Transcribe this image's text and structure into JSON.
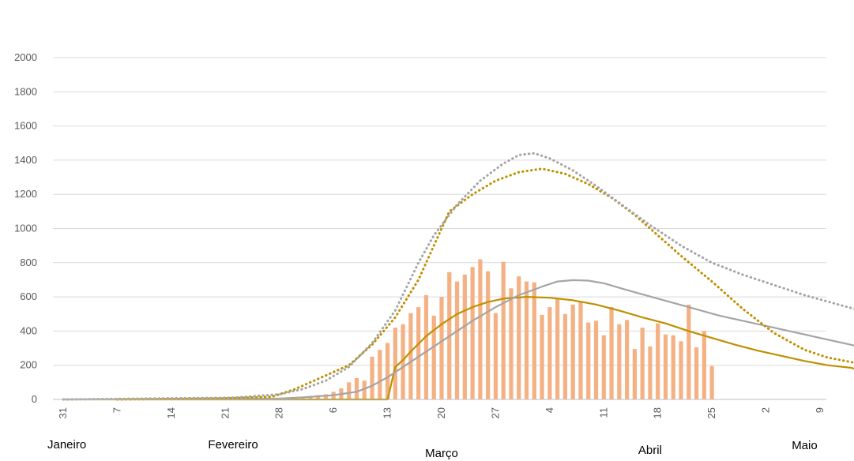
{
  "chart_data": {
    "type": "bar",
    "title": "",
    "xlabel": "",
    "ylabel": "",
    "ylim": [
      0,
      2000
    ],
    "y_ticks": [
      "0",
      "200",
      "400",
      "600",
      "800",
      "1000",
      "1200",
      "1400",
      "1600",
      "1800",
      "2000"
    ],
    "y_tick_values": [
      0,
      200,
      400,
      600,
      800,
      1000,
      1200,
      1400,
      1600,
      1800,
      2000
    ],
    "x_tick_labels": [
      "31",
      "7",
      "14",
      "21",
      "28",
      "6",
      "13",
      "20",
      "27",
      "4",
      "11",
      "18",
      "25",
      "2",
      "9"
    ],
    "x_tick_day_index": [
      0,
      7,
      14,
      21,
      28,
      35,
      42,
      49,
      56,
      63,
      70,
      77,
      84,
      91,
      98
    ],
    "x_range_days": [
      0,
      98
    ],
    "months": [
      {
        "label": "Janeiro",
        "day": 0
      },
      {
        "label": "Fevereiro",
        "day": 22
      },
      {
        "label": "Março",
        "day": 49
      },
      {
        "label": "Abril",
        "day": 76
      },
      {
        "label": "Maio",
        "day": 96
      }
    ],
    "grid": true,
    "legend": "none",
    "colors": {
      "bars": "#f4b183",
      "gold": "#bf9000",
      "gray": "#a5a5a5",
      "grid": "#d9d9d9",
      "axis": "#bfbfbf"
    },
    "bars": {
      "start_day": 29,
      "values": [
        3,
        8,
        12,
        18,
        25,
        30,
        45,
        65,
        100,
        125,
        110,
        250,
        290,
        330,
        420,
        440,
        505,
        540,
        610,
        490,
        600,
        745,
        690,
        730,
        775,
        820,
        750,
        505,
        805,
        650,
        720,
        690,
        685,
        495,
        540,
        590,
        500,
        555,
        570,
        450,
        460,
        375,
        540,
        440,
        465,
        295,
        420,
        310,
        445,
        380,
        375,
        340,
        555,
        305,
        400,
        195
      ]
    },
    "series": [
      {
        "style": "gold-solid",
        "points": [
          [
            0,
            0
          ],
          [
            42,
            0
          ],
          [
            43,
            190
          ],
          [
            44,
            230
          ],
          [
            45,
            280
          ],
          [
            47,
            370
          ],
          [
            49,
            440
          ],
          [
            51,
            500
          ],
          [
            53,
            540
          ],
          [
            55,
            570
          ],
          [
            57,
            590
          ],
          [
            60,
            600
          ],
          [
            63,
            595
          ],
          [
            66,
            580
          ],
          [
            69,
            555
          ],
          [
            72,
            520
          ],
          [
            75,
            480
          ],
          [
            78,
            445
          ],
          [
            81,
            400
          ],
          [
            84,
            360
          ],
          [
            87,
            320
          ],
          [
            90,
            285
          ],
          [
            93,
            255
          ],
          [
            96,
            225
          ],
          [
            99,
            200
          ],
          [
            102,
            185
          ],
          [
            105,
            150
          ],
          [
            108,
            140
          ],
          [
            110,
            120
          ]
        ]
      },
      {
        "style": "gray-solid",
        "points": [
          [
            0,
            0
          ],
          [
            28,
            5
          ],
          [
            31,
            12
          ],
          [
            35,
            25
          ],
          [
            38,
            45
          ],
          [
            40,
            80
          ],
          [
            42,
            130
          ],
          [
            44,
            190
          ],
          [
            47,
            280
          ],
          [
            50,
            370
          ],
          [
            53,
            460
          ],
          [
            56,
            540
          ],
          [
            59,
            610
          ],
          [
            62,
            660
          ],
          [
            64,
            690
          ],
          [
            66,
            698
          ],
          [
            68,
            695
          ],
          [
            70,
            680
          ],
          [
            73,
            640
          ],
          [
            77,
            590
          ],
          [
            81,
            540
          ],
          [
            85,
            490
          ],
          [
            89,
            450
          ],
          [
            93,
            410
          ],
          [
            97,
            370
          ],
          [
            100,
            340
          ],
          [
            103,
            310
          ],
          [
            106,
            280
          ],
          [
            110,
            230
          ]
        ]
      },
      {
        "style": "gold-dotted",
        "points": [
          [
            7,
            0
          ],
          [
            20,
            5
          ],
          [
            27,
            15
          ],
          [
            30,
            60
          ],
          [
            33,
            120
          ],
          [
            37,
            200
          ],
          [
            40,
            320
          ],
          [
            43,
            480
          ],
          [
            46,
            700
          ],
          [
            48,
            900
          ],
          [
            50,
            1100
          ],
          [
            53,
            1200
          ],
          [
            56,
            1280
          ],
          [
            59,
            1330
          ],
          [
            62,
            1350
          ],
          [
            65,
            1320
          ],
          [
            68,
            1260
          ],
          [
            71,
            1180
          ],
          [
            74,
            1080
          ],
          [
            77,
            960
          ],
          [
            80,
            840
          ],
          [
            84,
            690
          ],
          [
            88,
            530
          ],
          [
            92,
            390
          ],
          [
            96,
            290
          ],
          [
            99,
            245
          ],
          [
            103,
            210
          ],
          [
            110,
            200
          ]
        ]
      },
      {
        "style": "gray-dotted",
        "points": [
          [
            0,
            0
          ],
          [
            22,
            10
          ],
          [
            28,
            30
          ],
          [
            31,
            60
          ],
          [
            34,
            110
          ],
          [
            37,
            190
          ],
          [
            40,
            330
          ],
          [
            43,
            520
          ],
          [
            46,
            800
          ],
          [
            48,
            960
          ],
          [
            51,
            1140
          ],
          [
            54,
            1280
          ],
          [
            57,
            1380
          ],
          [
            59,
            1430
          ],
          [
            61,
            1440
          ],
          [
            63,
            1410
          ],
          [
            66,
            1340
          ],
          [
            69,
            1250
          ],
          [
            72,
            1150
          ],
          [
            76,
            1020
          ],
          [
            80,
            900
          ],
          [
            84,
            800
          ],
          [
            88,
            730
          ],
          [
            92,
            670
          ],
          [
            96,
            610
          ],
          [
            100,
            560
          ],
          [
            104,
            510
          ],
          [
            108,
            460
          ],
          [
            110,
            410
          ]
        ]
      }
    ]
  }
}
